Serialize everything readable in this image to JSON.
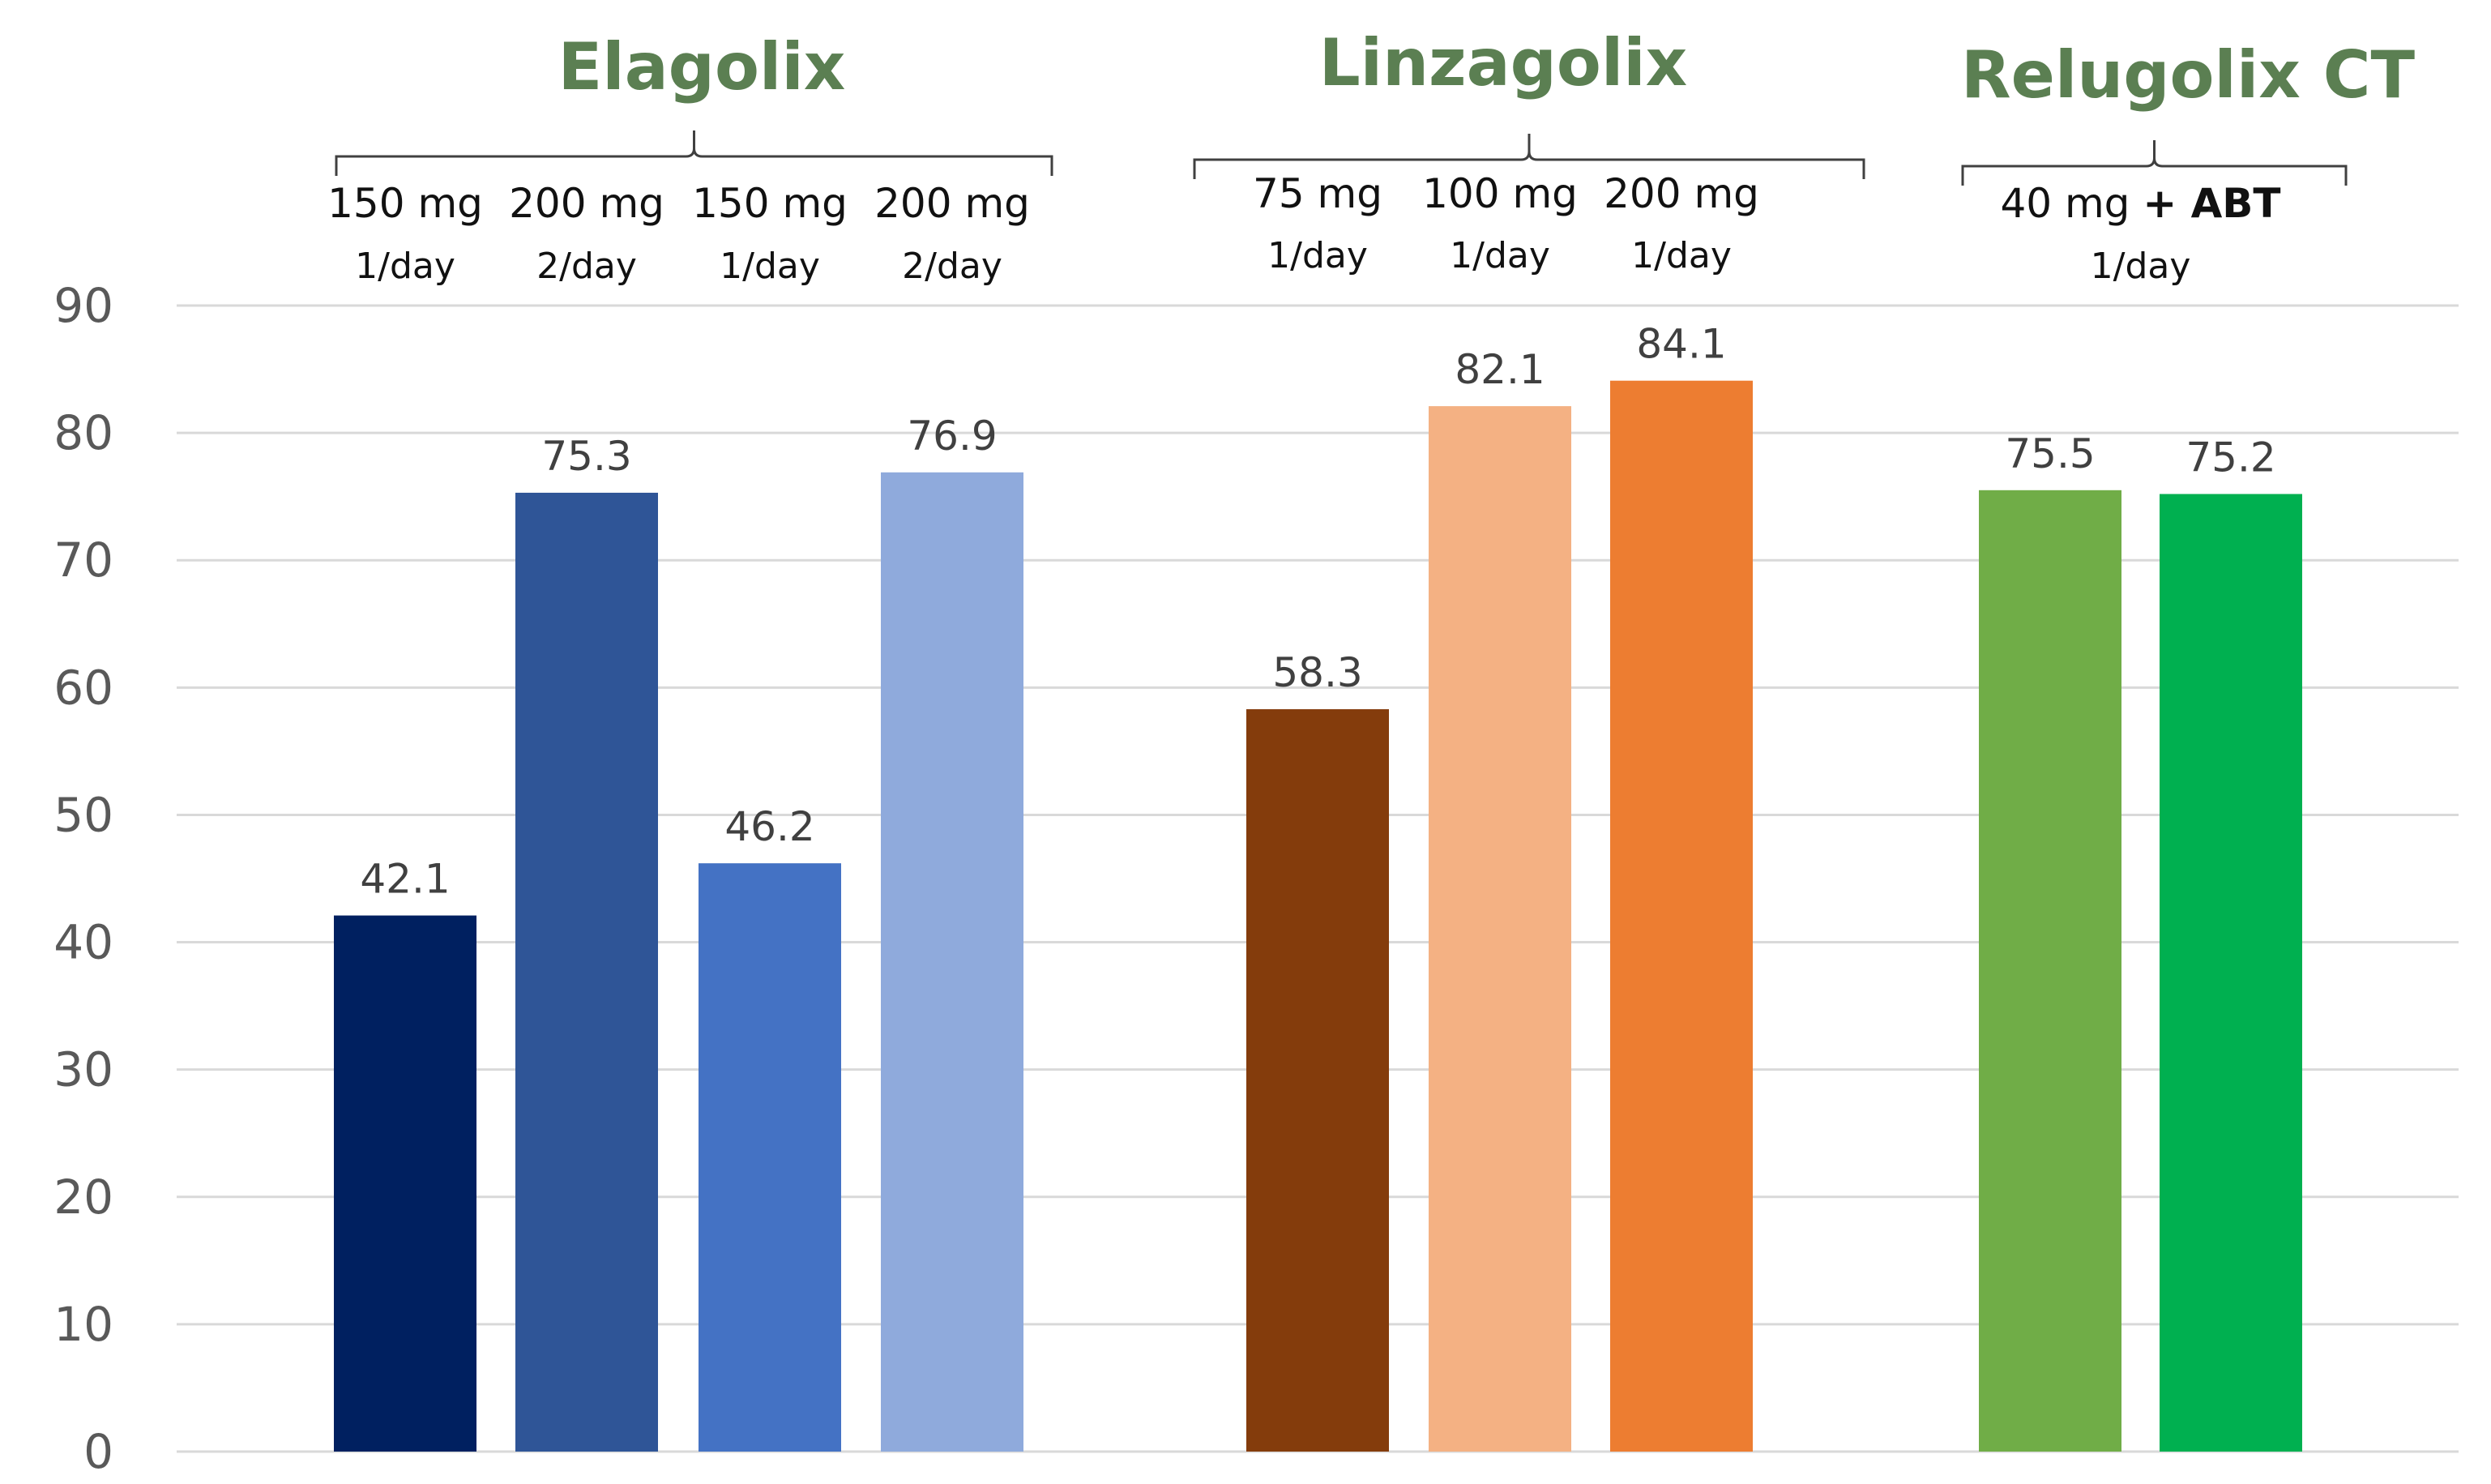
{
  "chart_data": {
    "type": "bar",
    "title": "",
    "xlabel": "",
    "ylabel": "",
    "ylim": [
      0,
      90
    ],
    "yticks": [
      0,
      10,
      20,
      30,
      40,
      50,
      60,
      70,
      80,
      90
    ],
    "grid": true,
    "groups": [
      {
        "name": "Elagolix",
        "bars": [
          0,
          1,
          2,
          3
        ]
      },
      {
        "name": "Linzagolix",
        "bars": [
          4,
          5,
          6
        ]
      },
      {
        "name": "Relugolix CT",
        "bars": [
          7,
          8
        ]
      }
    ],
    "dose_labels": [
      {
        "dose": "150 mg",
        "freq": "1/day"
      },
      {
        "dose": "200 mg",
        "freq": "2/day"
      },
      {
        "dose": "150 mg",
        "freq": "1/day"
      },
      {
        "dose": "200 mg",
        "freq": "2/day"
      },
      {
        "dose": "75 mg",
        "freq": "1/day"
      },
      {
        "dose": "100 mg",
        "freq": "1/day"
      },
      {
        "dose": "200 mg",
        "freq": "1/day"
      },
      {
        "dose": "40 mg",
        "dose_bold": "+ ABT",
        "freq": "1/day"
      }
    ],
    "bars": [
      {
        "value": 42.1,
        "color": "#002060"
      },
      {
        "value": 75.3,
        "color": "#2f5597"
      },
      {
        "value": 46.2,
        "color": "#4472c4"
      },
      {
        "value": 76.9,
        "color": "#8faadc"
      },
      {
        "value": 58.3,
        "color": "#843c0c"
      },
      {
        "value": 82.1,
        "color": "#f4b183"
      },
      {
        "value": 84.1,
        "color": "#ed7d31"
      },
      {
        "value": 75.5,
        "color": "#70ad47"
      },
      {
        "value": 75.2,
        "color": "#00b050"
      }
    ],
    "group_label_color": "#5b7f52"
  }
}
